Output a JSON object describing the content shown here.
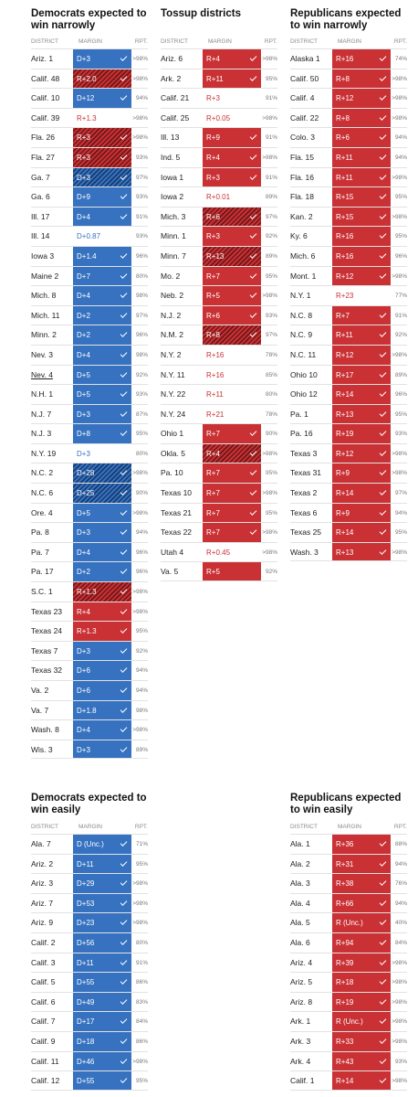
{
  "labels": {
    "district": "DISTRICT",
    "margin": "MARGIN",
    "rpt": "RPT."
  },
  "colors": {
    "dem": "#3672c0",
    "rep": "#c93135"
  },
  "sections": [
    {
      "title": "Democrats expected to win narrowly",
      "rows": [
        {
          "d": "Ariz. 1",
          "m": "D+3",
          "r": ">98%",
          "p": "D",
          "c": true
        },
        {
          "d": "Calif. 48",
          "m": "R+2.0",
          "r": ">98%",
          "p": "Rh",
          "c": true
        },
        {
          "d": "Calif. 10",
          "m": "D+12",
          "r": "94%",
          "p": "D",
          "c": true
        },
        {
          "d": "Calif. 39",
          "m": "R+1.3",
          "r": ">98%",
          "p": "Rt",
          "c": false
        },
        {
          "d": "Fla. 26",
          "m": "R+3",
          "r": ">98%",
          "p": "Rh",
          "c": true
        },
        {
          "d": "Fla. 27",
          "m": "R+3",
          "r": "93%",
          "p": "Rh",
          "c": true
        },
        {
          "d": "Ga. 7",
          "m": "D+3",
          "r": "97%",
          "p": "Dh",
          "c": true
        },
        {
          "d": "Ga. 6",
          "m": "D+9",
          "r": "93%",
          "p": "D",
          "c": true
        },
        {
          "d": "Ill. 17",
          "m": "D+4",
          "r": "91%",
          "p": "D",
          "c": true
        },
        {
          "d": "Ill. 14",
          "m": "D+0.87",
          "r": "93%",
          "p": "Dt",
          "c": false
        },
        {
          "d": "Iowa 3",
          "m": "D+1.4",
          "r": "96%",
          "p": "D",
          "c": true
        },
        {
          "d": "Maine 2",
          "m": "D+7",
          "r": "80%",
          "p": "D",
          "c": true
        },
        {
          "d": "Mich. 8",
          "m": "D+4",
          "r": "98%",
          "p": "D",
          "c": true
        },
        {
          "d": "Mich. 11",
          "m": "D+2",
          "r": "97%",
          "p": "D",
          "c": true
        },
        {
          "d": "Minn. 2",
          "m": "D+2",
          "r": "96%",
          "p": "D",
          "c": true
        },
        {
          "d": "Nev. 3",
          "m": "D+4",
          "r": "98%",
          "p": "D",
          "c": true
        },
        {
          "d": "Nev. 4",
          "m": "D+5",
          "r": "92%",
          "p": "D",
          "c": true,
          "u": true
        },
        {
          "d": "N.H. 1",
          "m": "D+5",
          "r": "93%",
          "p": "D",
          "c": true
        },
        {
          "d": "N.J. 7",
          "m": "D+3",
          "r": "87%",
          "p": "D",
          "c": true
        },
        {
          "d": "N.J. 3",
          "m": "D+8",
          "r": "95%",
          "p": "D",
          "c": true
        },
        {
          "d": "N.Y. 19",
          "m": "D+3",
          "r": "80%",
          "p": "Dt",
          "c": false
        },
        {
          "d": "N.C. 2",
          "m": "D+28",
          "r": ">98%",
          "p": "Dh",
          "c": true
        },
        {
          "d": "N.C. 6",
          "m": "D+25",
          "r": "90%",
          "p": "Dh",
          "c": true
        },
        {
          "d": "Ore. 4",
          "m": "D+5",
          "r": ">98%",
          "p": "D",
          "c": true
        },
        {
          "d": "Pa. 8",
          "m": "D+3",
          "r": "94%",
          "p": "D",
          "c": true
        },
        {
          "d": "Pa. 7",
          "m": "D+4",
          "r": "96%",
          "p": "D",
          "c": true
        },
        {
          "d": "Pa. 17",
          "m": "D+2",
          "r": "96%",
          "p": "D",
          "c": true
        },
        {
          "d": "S.C. 1",
          "m": "R+1.3",
          "r": ">98%",
          "p": "Rh",
          "c": true
        },
        {
          "d": "Texas 23",
          "m": "R+4",
          "r": ">98%",
          "p": "R",
          "c": true
        },
        {
          "d": "Texas 24",
          "m": "R+1.3",
          "r": "95%",
          "p": "R",
          "c": true
        },
        {
          "d": "Texas 7",
          "m": "D+3",
          "r": "92%",
          "p": "D",
          "c": true
        },
        {
          "d": "Texas 32",
          "m": "D+6",
          "r": "94%",
          "p": "D",
          "c": true
        },
        {
          "d": "Va. 2",
          "m": "D+6",
          "r": "94%",
          "p": "D",
          "c": true
        },
        {
          "d": "Va. 7",
          "m": "D+1.8",
          "r": "98%",
          "p": "D",
          "c": true
        },
        {
          "d": "Wash. 8",
          "m": "D+4",
          "r": ">98%",
          "p": "D",
          "c": true
        },
        {
          "d": "Wis. 3",
          "m": "D+3",
          "r": "89%",
          "p": "D",
          "c": true
        }
      ]
    },
    {
      "title": "Tossup districts",
      "rows": [
        {
          "d": "Ariz. 6",
          "m": "R+4",
          "r": ">98%",
          "p": "R",
          "c": true
        },
        {
          "d": "Ark. 2",
          "m": "R+11",
          "r": "95%",
          "p": "R",
          "c": true
        },
        {
          "d": "Calif. 21",
          "m": "R+3",
          "r": "91%",
          "p": "Rt",
          "c": false
        },
        {
          "d": "Calif. 25",
          "m": "R+0.05",
          "r": ">98%",
          "p": "Rt",
          "c": false
        },
        {
          "d": "Ill. 13",
          "m": "R+9",
          "r": "91%",
          "p": "R",
          "c": true
        },
        {
          "d": "Ind. 5",
          "m": "R+4",
          "r": ">98%",
          "p": "R",
          "c": true
        },
        {
          "d": "Iowa 1",
          "m": "R+3",
          "r": "91%",
          "p": "R",
          "c": true
        },
        {
          "d": "Iowa 2",
          "m": "R+0.01",
          "r": "89%",
          "p": "Rt",
          "c": false
        },
        {
          "d": "Mich. 3",
          "m": "R+6",
          "r": "97%",
          "p": "Rh",
          "c": true
        },
        {
          "d": "Minn. 1",
          "m": "R+3",
          "r": "92%",
          "p": "R",
          "c": true
        },
        {
          "d": "Minn. 7",
          "m": "R+13",
          "r": "89%",
          "p": "Rh",
          "c": true
        },
        {
          "d": "Mo. 2",
          "m": "R+7",
          "r": "95%",
          "p": "R",
          "c": true
        },
        {
          "d": "Neb. 2",
          "m": "R+5",
          "r": ">98%",
          "p": "R",
          "c": true
        },
        {
          "d": "N.J. 2",
          "m": "R+6",
          "r": "93%",
          "p": "R",
          "c": true
        },
        {
          "d": "N.M. 2",
          "m": "R+8",
          "r": "97%",
          "p": "Rh",
          "c": true
        },
        {
          "d": "N.Y. 2",
          "m": "R+16",
          "r": "78%",
          "p": "Rt",
          "c": false
        },
        {
          "d": "N.Y. 11",
          "m": "R+16",
          "r": "85%",
          "p": "Rt",
          "c": false
        },
        {
          "d": "N.Y. 22",
          "m": "R+11",
          "r": "80%",
          "p": "Rt",
          "c": false
        },
        {
          "d": "N.Y. 24",
          "m": "R+21",
          "r": "78%",
          "p": "Rt",
          "c": false
        },
        {
          "d": "Ohio 1",
          "m": "R+7",
          "r": "90%",
          "p": "R",
          "c": true
        },
        {
          "d": "Okla. 5",
          "m": "R+4",
          "r": ">98%",
          "p": "Rh",
          "c": true
        },
        {
          "d": "Pa. 10",
          "m": "R+7",
          "r": "95%",
          "p": "R",
          "c": true
        },
        {
          "d": "Texas 10",
          "m": "R+7",
          "r": ">98%",
          "p": "R",
          "c": true
        },
        {
          "d": "Texas 21",
          "m": "R+7",
          "r": "95%",
          "p": "R",
          "c": true
        },
        {
          "d": "Texas 22",
          "m": "R+7",
          "r": ">98%",
          "p": "R",
          "c": true
        },
        {
          "d": "Utah 4",
          "m": "R+0.45",
          "r": ">98%",
          "p": "Rt",
          "c": false
        },
        {
          "d": "Va. 5",
          "m": "R+5",
          "r": "92%",
          "p": "R",
          "c": false
        }
      ]
    },
    {
      "title": "Republicans expected to win narrowly",
      "rows": [
        {
          "d": "Alaska 1",
          "m": "R+16",
          "r": "74%",
          "p": "R",
          "c": true
        },
        {
          "d": "Calif. 50",
          "m": "R+8",
          "r": ">98%",
          "p": "R",
          "c": true
        },
        {
          "d": "Calif. 4",
          "m": "R+12",
          "r": ">98%",
          "p": "R",
          "c": true
        },
        {
          "d": "Calif. 22",
          "m": "R+8",
          "r": ">98%",
          "p": "R",
          "c": true
        },
        {
          "d": "Colo. 3",
          "m": "R+6",
          "r": "94%",
          "p": "R",
          "c": true
        },
        {
          "d": "Fla. 15",
          "m": "R+11",
          "r": "94%",
          "p": "R",
          "c": true
        },
        {
          "d": "Fla. 16",
          "m": "R+11",
          "r": ">98%",
          "p": "R",
          "c": true
        },
        {
          "d": "Fla. 18",
          "m": "R+15",
          "r": "95%",
          "p": "R",
          "c": true
        },
        {
          "d": "Kan. 2",
          "m": "R+15",
          "r": ">98%",
          "p": "R",
          "c": true
        },
        {
          "d": "Ky. 6",
          "m": "R+16",
          "r": "95%",
          "p": "R",
          "c": true
        },
        {
          "d": "Mich. 6",
          "m": "R+16",
          "r": "96%",
          "p": "R",
          "c": true
        },
        {
          "d": "Mont. 1",
          "m": "R+12",
          "r": ">98%",
          "p": "R",
          "c": true
        },
        {
          "d": "N.Y. 1",
          "m": "R+23",
          "r": "77%",
          "p": "Rt",
          "c": false
        },
        {
          "d": "N.C. 8",
          "m": "R+7",
          "r": "91%",
          "p": "R",
          "c": true
        },
        {
          "d": "N.C. 9",
          "m": "R+11",
          "r": "92%",
          "p": "R",
          "c": true
        },
        {
          "d": "N.C. 11",
          "m": "R+12",
          "r": ">98%",
          "p": "R",
          "c": true
        },
        {
          "d": "Ohio 10",
          "m": "R+17",
          "r": "89%",
          "p": "R",
          "c": true
        },
        {
          "d": "Ohio 12",
          "m": "R+14",
          "r": "96%",
          "p": "R",
          "c": true
        },
        {
          "d": "Pa. 1",
          "m": "R+13",
          "r": "95%",
          "p": "R",
          "c": true
        },
        {
          "d": "Pa. 16",
          "m": "R+19",
          "r": "93%",
          "p": "R",
          "c": true
        },
        {
          "d": "Texas 3",
          "m": "R+12",
          "r": ">98%",
          "p": "R",
          "c": true
        },
        {
          "d": "Texas 31",
          "m": "R+9",
          "r": ">98%",
          "p": "R",
          "c": true
        },
        {
          "d": "Texas 2",
          "m": "R+14",
          "r": "97%",
          "p": "R",
          "c": true
        },
        {
          "d": "Texas 6",
          "m": "R+9",
          "r": "94%",
          "p": "R",
          "c": true
        },
        {
          "d": "Texas 25",
          "m": "R+14",
          "r": "95%",
          "p": "R",
          "c": true
        },
        {
          "d": "Wash. 3",
          "m": "R+13",
          "r": ">98%",
          "p": "R",
          "c": true
        }
      ]
    },
    {
      "title": "Democrats expected to win easily",
      "rows": [
        {
          "d": "Ala. 7",
          "m": "D (Unc.)",
          "r": "71%",
          "p": "D",
          "c": true
        },
        {
          "d": "Ariz. 2",
          "m": "D+11",
          "r": "95%",
          "p": "D",
          "c": true
        },
        {
          "d": "Ariz. 3",
          "m": "D+29",
          "r": ">98%",
          "p": "D",
          "c": true
        },
        {
          "d": "Ariz. 7",
          "m": "D+53",
          "r": ">98%",
          "p": "D",
          "c": true
        },
        {
          "d": "Ariz. 9",
          "m": "D+23",
          "r": ">98%",
          "p": "D",
          "c": true
        },
        {
          "d": "Calif. 2",
          "m": "D+56",
          "r": "80%",
          "p": "D",
          "c": true
        },
        {
          "d": "Calif. 3",
          "m": "D+11",
          "r": "91%",
          "p": "D",
          "c": true
        },
        {
          "d": "Calif. 5",
          "m": "D+55",
          "r": "86%",
          "p": "D",
          "c": true
        },
        {
          "d": "Calif. 6",
          "m": "D+49",
          "r": "83%",
          "p": "D",
          "c": true
        },
        {
          "d": "Calif. 7",
          "m": "D+17",
          "r": "84%",
          "p": "D",
          "c": true
        },
        {
          "d": "Calif. 9",
          "m": "D+18",
          "r": "86%",
          "p": "D",
          "c": true
        },
        {
          "d": "Calif. 11",
          "m": "D+46",
          "r": ">98%",
          "p": "D",
          "c": true
        },
        {
          "d": "Calif. 12",
          "m": "D+55",
          "r": "95%",
          "p": "D",
          "c": true
        }
      ]
    },
    {
      "title": "Republicans expected to win easily",
      "rows": [
        {
          "d": "Ala. 1",
          "m": "R+36",
          "r": "88%",
          "p": "R",
          "c": true
        },
        {
          "d": "Ala. 2",
          "m": "R+31",
          "r": "94%",
          "p": "R",
          "c": true
        },
        {
          "d": "Ala. 3",
          "m": "R+38",
          "r": "76%",
          "p": "R",
          "c": true
        },
        {
          "d": "Ala. 4",
          "m": "R+66",
          "r": "94%",
          "p": "R",
          "c": true
        },
        {
          "d": "Ala. 5",
          "m": "R (Unc.)",
          "r": "40%",
          "p": "R",
          "c": true
        },
        {
          "d": "Ala. 6",
          "m": "R+94",
          "r": "84%",
          "p": "R",
          "c": true
        },
        {
          "d": "Ariz. 4",
          "m": "R+39",
          "r": ">98%",
          "p": "R",
          "c": true
        },
        {
          "d": "Ariz. 5",
          "m": "R+18",
          "r": ">98%",
          "p": "R",
          "c": true
        },
        {
          "d": "Ariz. 8",
          "m": "R+19",
          "r": ">98%",
          "p": "R",
          "c": true
        },
        {
          "d": "Ark. 1",
          "m": "R (Unc.)",
          "r": ">98%",
          "p": "R",
          "c": true
        },
        {
          "d": "Ark. 3",
          "m": "R+33",
          "r": ">98%",
          "p": "R",
          "c": true
        },
        {
          "d": "Ark. 4",
          "m": "R+43",
          "r": "93%",
          "p": "R",
          "c": true
        },
        {
          "d": "Calif. 1",
          "m": "R+14",
          "r": ">98%",
          "p": "R",
          "c": true
        }
      ]
    }
  ]
}
